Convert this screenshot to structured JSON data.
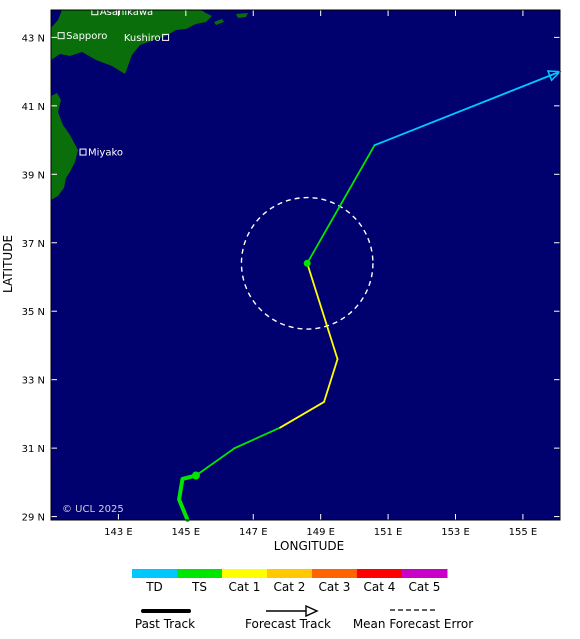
{
  "map": {
    "lon_min": 141.0,
    "lon_max": 156.1,
    "lat_min": 28.9,
    "lat_max": 43.8,
    "x_tick_labels": [
      "143 E",
      "145 E",
      "147 E",
      "149 E",
      "151 E",
      "153 E",
      "155 E"
    ],
    "x_tick_values": [
      143,
      145,
      147,
      149,
      151,
      153,
      155
    ],
    "y_tick_labels": [
      "43 N",
      "41 N",
      "39 N",
      "37 N",
      "35 N",
      "33 N",
      "31 N",
      "29 N"
    ],
    "y_tick_values": [
      43,
      41,
      39,
      37,
      35,
      33,
      31,
      29
    ],
    "x_axis_title": "LONGITUDE",
    "y_axis_title": "LATITUDE",
    "copyright": "© UCL 2025",
    "colors": {
      "ocean": "#00006e",
      "land": "#0a6e0a",
      "TD": "#00c8ff",
      "TS": "#00e600",
      "Cat 1": "#ffff00",
      "Cat 2": "#ffc800",
      "Cat 3": "#ff6400",
      "Cat 4": "#ff0000",
      "Cat 5": "#c800c8"
    },
    "cities": [
      {
        "name": "Asahikawa",
        "lon": 142.3,
        "lat": 43.75
      },
      {
        "name": "Sapporo",
        "lon": 141.3,
        "lat": 43.05
      },
      {
        "name": "Kushiro",
        "lon": 144.4,
        "lat": 43.0
      },
      {
        "name": "Miyako",
        "lon": 141.95,
        "lat": 39.65
      }
    ],
    "past_track": [
      {
        "lon": 145.05,
        "lat": 28.9
      },
      {
        "lon": 144.8,
        "lat": 29.5
      },
      {
        "lon": 144.9,
        "lat": 30.1
      },
      {
        "lon": 145.3,
        "lat": 30.2
      }
    ],
    "forecast_track": [
      {
        "lon": 145.3,
        "lat": 30.2,
        "intensity": "TS"
      },
      {
        "lon": 146.45,
        "lat": 31.0,
        "intensity": "TS"
      },
      {
        "lon": 147.8,
        "lat": 31.6,
        "intensity": "Cat 1"
      },
      {
        "lon": 149.1,
        "lat": 32.35,
        "intensity": "Cat 1"
      },
      {
        "lon": 149.5,
        "lat": 33.6,
        "intensity": "Cat 1"
      },
      {
        "lon": 148.6,
        "lat": 36.4,
        "intensity": "TS"
      },
      {
        "lon": 150.6,
        "lat": 39.85,
        "intensity": "TD"
      },
      {
        "lon": 156.1,
        "lat": 42.0,
        "intensity": "TD"
      }
    ],
    "current_position": {
      "lon": 145.3,
      "lat": 30.2
    },
    "forecast_point": {
      "lon": 148.6,
      "lat": 36.4
    },
    "error_circle": {
      "center_lon": 148.6,
      "center_lat": 36.4,
      "radius_deg": 1.95
    }
  },
  "legend": {
    "categories": [
      "TD",
      "TS",
      "Cat 1",
      "Cat 2",
      "Cat 3",
      "Cat 4",
      "Cat 5"
    ],
    "past_track_label": "Past Track",
    "forecast_track_label": "Forecast Track",
    "error_label": "Mean Forecast Error"
  }
}
